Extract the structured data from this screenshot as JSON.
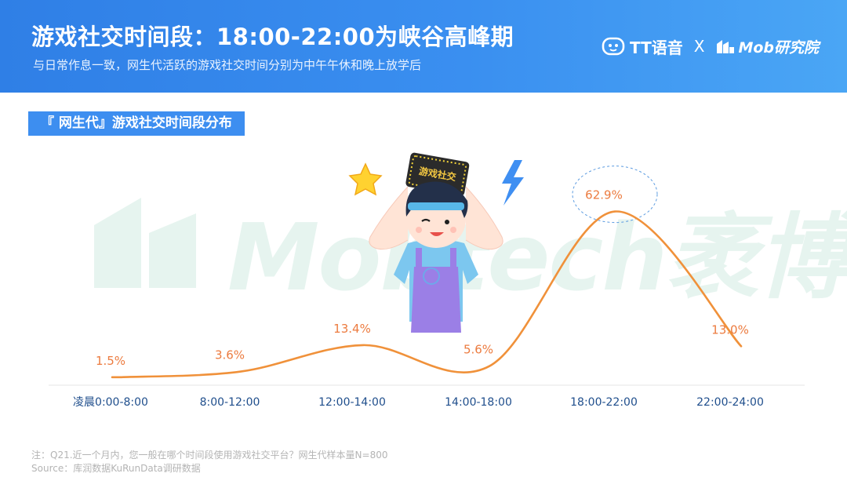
{
  "header": {
    "title": "游戏社交时间段：18:00-22:00为峡谷高峰期",
    "subtitle": "与日常作息一致，网生代活跃的游戏社交时间分别为中午午休和晚上放学后",
    "brand_tt": "TT语音",
    "brand_separator": "X",
    "brand_mob": "Mob研究院"
  },
  "section_label": "『 网生代』游戏社交时间段分布",
  "watermark": "Mobtech袤博",
  "illustration": {
    "sign_text": "游戏社交"
  },
  "chart_data": {
    "type": "line",
    "title": "",
    "xlabel": "",
    "ylabel": "",
    "categories": [
      "凌晨0:00-8:00",
      "8:00-12:00",
      "12:00-14:00",
      "14:00-18:00",
      "18:00-22:00",
      "22:00-24:00"
    ],
    "values": [
      1.5,
      3.6,
      13.4,
      5.6,
      62.9,
      13.0
    ],
    "value_labels": [
      "1.5%",
      "3.6%",
      "13.4%",
      "5.6%",
      "62.9%",
      "13.0%"
    ],
    "ylim": [
      0,
      75
    ],
    "highlight_index": 4,
    "colors": {
      "line": "#f0913a",
      "value_label": "#ec7b3f",
      "category_label": "#1f4e8c",
      "highlight_ellipse": "#5b9be0",
      "axis": "#e6e6e6"
    },
    "grid": false,
    "smooth": true
  },
  "footnotes": {
    "note": "注：Q21.近一个月内，您一般在哪个时间段使用游戏社交平台？网生代样本量N=800",
    "source": "Source：库润数据KuRunData调研数据"
  }
}
